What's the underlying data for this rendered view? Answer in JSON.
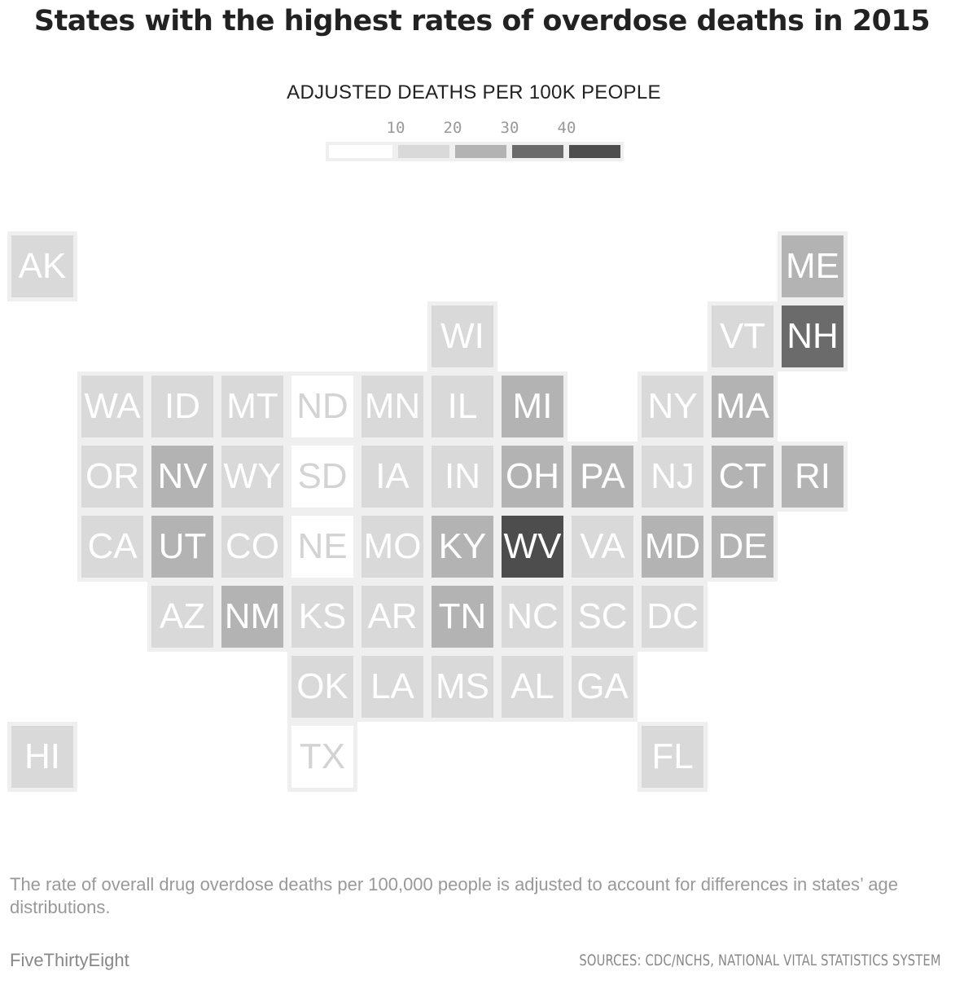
{
  "title": "States with the highest rates of overdose deaths in 2015",
  "legend": {
    "title": "ADJUSTED DEATHS PER 100K PEOPLE",
    "ticks": [
      "10",
      "20",
      "30",
      "40"
    ],
    "colors": [
      "#ffffff",
      "#d9d9d9",
      "#b3b3b3",
      "#6b6b6b",
      "#4d4d4d"
    ]
  },
  "chart_data": {
    "type": "tile-map",
    "title": "States with the highest rates of overdose deaths in 2015",
    "measure": "Adjusted deaths per 100K people",
    "bins": [
      {
        "range": "<10",
        "color": "#ffffff"
      },
      {
        "range": "10-20",
        "color": "#d9d9d9"
      },
      {
        "range": "20-30",
        "color": "#b3b3b3"
      },
      {
        "range": "30-40",
        "color": "#6b6b6b"
      },
      {
        "range": ">40",
        "color": "#4d4d4d"
      }
    ],
    "states": [
      {
        "abbr": "AK",
        "row": 0,
        "col": 0,
        "bin": 1
      },
      {
        "abbr": "ME",
        "row": 0,
        "col": 11,
        "bin": 2
      },
      {
        "abbr": "WI",
        "row": 1,
        "col": 6,
        "bin": 1
      },
      {
        "abbr": "VT",
        "row": 1,
        "col": 10,
        "bin": 1
      },
      {
        "abbr": "NH",
        "row": 1,
        "col": 11,
        "bin": 3
      },
      {
        "abbr": "WA",
        "row": 2,
        "col": 1,
        "bin": 1
      },
      {
        "abbr": "ID",
        "row": 2,
        "col": 2,
        "bin": 1
      },
      {
        "abbr": "MT",
        "row": 2,
        "col": 3,
        "bin": 1
      },
      {
        "abbr": "ND",
        "row": 2,
        "col": 4,
        "bin": 0
      },
      {
        "abbr": "MN",
        "row": 2,
        "col": 5,
        "bin": 1
      },
      {
        "abbr": "IL",
        "row": 2,
        "col": 6,
        "bin": 1
      },
      {
        "abbr": "MI",
        "row": 2,
        "col": 7,
        "bin": 2
      },
      {
        "abbr": "NY",
        "row": 2,
        "col": 9,
        "bin": 1
      },
      {
        "abbr": "MA",
        "row": 2,
        "col": 10,
        "bin": 2
      },
      {
        "abbr": "OR",
        "row": 3,
        "col": 1,
        "bin": 1
      },
      {
        "abbr": "NV",
        "row": 3,
        "col": 2,
        "bin": 2
      },
      {
        "abbr": "WY",
        "row": 3,
        "col": 3,
        "bin": 1
      },
      {
        "abbr": "SD",
        "row": 3,
        "col": 4,
        "bin": 0
      },
      {
        "abbr": "IA",
        "row": 3,
        "col": 5,
        "bin": 1
      },
      {
        "abbr": "IN",
        "row": 3,
        "col": 6,
        "bin": 1
      },
      {
        "abbr": "OH",
        "row": 3,
        "col": 7,
        "bin": 2
      },
      {
        "abbr": "PA",
        "row": 3,
        "col": 8,
        "bin": 2
      },
      {
        "abbr": "NJ",
        "row": 3,
        "col": 9,
        "bin": 1
      },
      {
        "abbr": "CT",
        "row": 3,
        "col": 10,
        "bin": 2
      },
      {
        "abbr": "RI",
        "row": 3,
        "col": 11,
        "bin": 2
      },
      {
        "abbr": "CA",
        "row": 4,
        "col": 1,
        "bin": 1
      },
      {
        "abbr": "UT",
        "row": 4,
        "col": 2,
        "bin": 2
      },
      {
        "abbr": "CO",
        "row": 4,
        "col": 3,
        "bin": 1
      },
      {
        "abbr": "NE",
        "row": 4,
        "col": 4,
        "bin": 0
      },
      {
        "abbr": "MO",
        "row": 4,
        "col": 5,
        "bin": 1
      },
      {
        "abbr": "KY",
        "row": 4,
        "col": 6,
        "bin": 2
      },
      {
        "abbr": "WV",
        "row": 4,
        "col": 7,
        "bin": 4
      },
      {
        "abbr": "VA",
        "row": 4,
        "col": 8,
        "bin": 1
      },
      {
        "abbr": "MD",
        "row": 4,
        "col": 9,
        "bin": 2
      },
      {
        "abbr": "DE",
        "row": 4,
        "col": 10,
        "bin": 2
      },
      {
        "abbr": "AZ",
        "row": 5,
        "col": 2,
        "bin": 1
      },
      {
        "abbr": "NM",
        "row": 5,
        "col": 3,
        "bin": 2
      },
      {
        "abbr": "KS",
        "row": 5,
        "col": 4,
        "bin": 1
      },
      {
        "abbr": "AR",
        "row": 5,
        "col": 5,
        "bin": 1
      },
      {
        "abbr": "TN",
        "row": 5,
        "col": 6,
        "bin": 2
      },
      {
        "abbr": "NC",
        "row": 5,
        "col": 7,
        "bin": 1
      },
      {
        "abbr": "SC",
        "row": 5,
        "col": 8,
        "bin": 1
      },
      {
        "abbr": "DC",
        "row": 5,
        "col": 9,
        "bin": 1
      },
      {
        "abbr": "OK",
        "row": 6,
        "col": 4,
        "bin": 1
      },
      {
        "abbr": "LA",
        "row": 6,
        "col": 5,
        "bin": 1
      },
      {
        "abbr": "MS",
        "row": 6,
        "col": 6,
        "bin": 1
      },
      {
        "abbr": "AL",
        "row": 6,
        "col": 7,
        "bin": 1
      },
      {
        "abbr": "GA",
        "row": 6,
        "col": 8,
        "bin": 1
      },
      {
        "abbr": "HI",
        "row": 7,
        "col": 0,
        "bin": 1
      },
      {
        "abbr": "TX",
        "row": 7,
        "col": 4,
        "bin": 0
      },
      {
        "abbr": "FL",
        "row": 7,
        "col": 9,
        "bin": 1
      }
    ]
  },
  "footer": {
    "note": "The rate of overall drug overdose deaths per 100,000 people is adjusted to account for differences in states’ age distributions.",
    "brand": "FiveThirtyEight",
    "sources": "SOURCES: CDC/NCHS, NATIONAL VITAL STATISTICS SYSTEM"
  }
}
